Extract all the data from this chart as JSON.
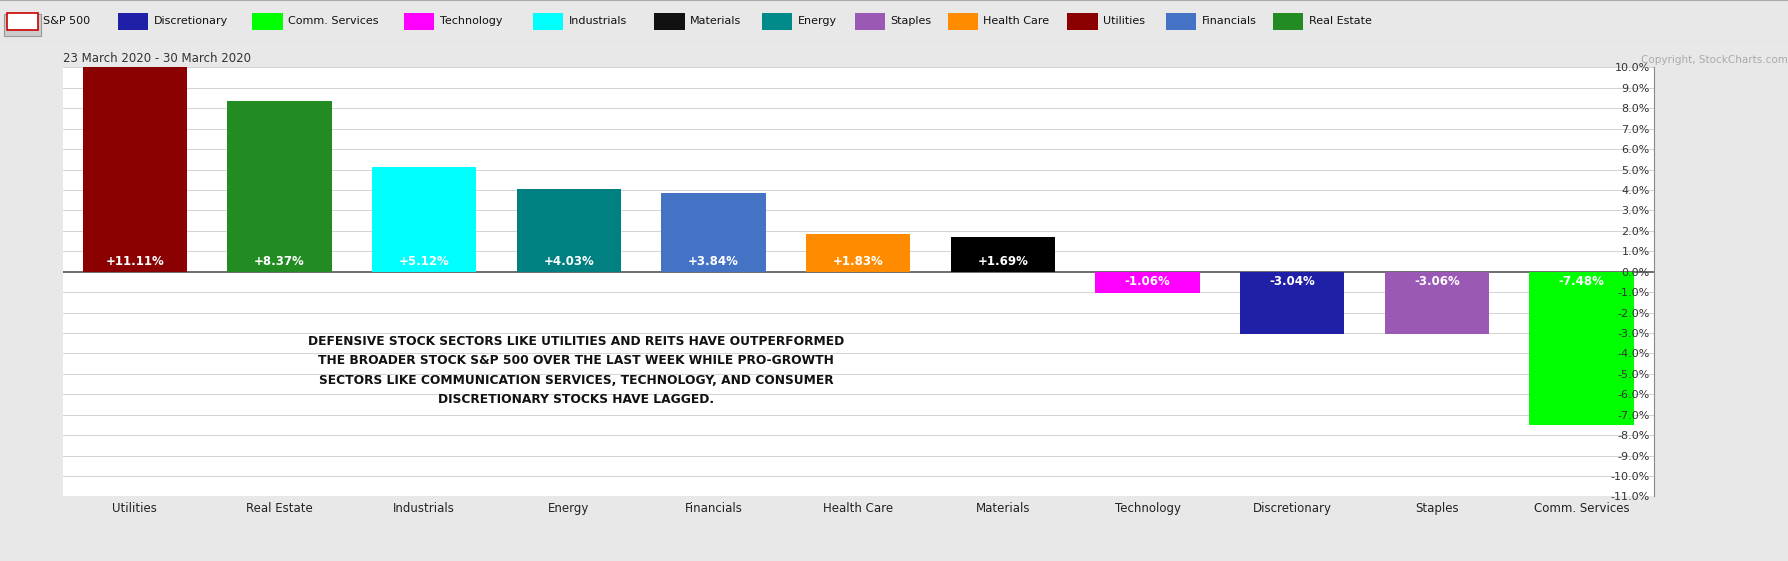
{
  "categories": [
    "Utilities",
    "Real Estate",
    "Industrials",
    "Energy",
    "Financials",
    "Health Care",
    "Materials",
    "Technology",
    "Discretionary",
    "Staples",
    "Comm. Services"
  ],
  "values": [
    11.11,
    8.37,
    5.12,
    4.03,
    3.84,
    1.83,
    1.69,
    -1.06,
    -3.04,
    -3.06,
    -7.48
  ],
  "bar_colors": [
    "#8B0000",
    "#228B22",
    "#00FFFF",
    "#008080",
    "#4472C4",
    "#FF8C00",
    "#000000",
    "#FF00FF",
    "#1F1FA8",
    "#9B59B6",
    "#00FF00"
  ],
  "labels": [
    "+11.11%",
    "+8.37%",
    "+5.12%",
    "+4.03%",
    "+3.84%",
    "+1.83%",
    "+1.69%",
    "-1.06%",
    "-3.04%",
    "-3.06%",
    "-7.48%"
  ],
  "ylim": [
    -11.0,
    10.0
  ],
  "yticks": [
    -11.0,
    -10.0,
    -9.0,
    -8.0,
    -7.0,
    -6.0,
    -5.0,
    -4.0,
    -3.0,
    -2.0,
    -1.0,
    0.0,
    1.0,
    2.0,
    3.0,
    4.0,
    5.0,
    6.0,
    7.0,
    8.0,
    9.0,
    10.0
  ],
  "date_label": "23 March 2020 - 30 March 2020",
  "copyright": "Copyright, StockCharts.com",
  "annotation_text": "DEFENSIVE STOCK SECTORS LIKE UTILITIES AND REITS HAVE OUTPERFORMED\nTHE BROADER STOCK S&P 500 OVER THE LAST WEEK WHILE PRO-GROWTH\nSECTORS LIKE COMMUNICATION SERVICES, TECHNOLOGY, AND CONSUMER\nDISCRETIONARY STOCKS HAVE LAGGED.",
  "legend_items": [
    {
      "label": "S&P 500",
      "color": "white",
      "edgecolor": "#CC0000",
      "bg": "#CCCCCC"
    },
    {
      "label": "Discretionary",
      "color": "#1F1FA8",
      "edgecolor": "none"
    },
    {
      "label": "Comm. Services",
      "color": "#00FF00",
      "edgecolor": "none"
    },
    {
      "label": "Technology",
      "color": "#FF00FF",
      "edgecolor": "none"
    },
    {
      "label": "Industrials",
      "color": "#00FFFF",
      "edgecolor": "none"
    },
    {
      "label": "Materials",
      "color": "#111111",
      "edgecolor": "none"
    },
    {
      "label": "Energy",
      "color": "#008B8B",
      "edgecolor": "none"
    },
    {
      "label": "Staples",
      "color": "#9B59B6",
      "edgecolor": "none"
    },
    {
      "label": "Health Care",
      "color": "#FF8C00",
      "edgecolor": "none"
    },
    {
      "label": "Utilities",
      "color": "#8B0000",
      "edgecolor": "none"
    },
    {
      "label": "Financials",
      "color": "#4472C4",
      "edgecolor": "none"
    },
    {
      "label": "Real Estate",
      "color": "#228B22",
      "edgecolor": "none"
    }
  ],
  "bg_color": "#E8E8E8",
  "plot_bg_color": "#FFFFFF",
  "grid_color": "#CCCCCC",
  "zero_line_color": "#555555"
}
